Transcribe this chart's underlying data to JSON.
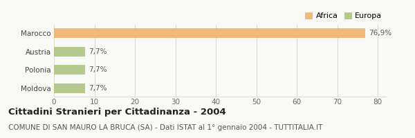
{
  "categories": [
    "Marocco",
    "Austria",
    "Polonia",
    "Moldova"
  ],
  "values": [
    76.9,
    7.7,
    7.7,
    7.7
  ],
  "labels": [
    "76,9%",
    "7,7%",
    "7,7%",
    "7,7%"
  ],
  "colors": [
    "#f0b97a",
    "#b5c98e",
    "#b5c98e",
    "#b5c98e"
  ],
  "legend": [
    {
      "label": "Africa",
      "color": "#f0b97a"
    },
    {
      "label": "Europa",
      "color": "#b5c98e"
    }
  ],
  "xlim": [
    0,
    82
  ],
  "xticks": [
    0,
    10,
    20,
    30,
    40,
    50,
    60,
    70,
    80
  ],
  "title": "Cittadini Stranieri per Cittadinanza - 2004",
  "subtitle": "COMUNE DI SAN MAURO LA BRUCA (SA) - Dati ISTAT al 1° gennaio 2004 - TUTTITALIA.IT",
  "bg_color": "#f9f9f6",
  "bar_height": 0.52,
  "label_fontsize": 7.5,
  "title_fontsize": 9.5,
  "subtitle_fontsize": 7.5,
  "ytick_fontsize": 7.5,
  "xtick_fontsize": 7.5,
  "legend_fontsize": 8
}
